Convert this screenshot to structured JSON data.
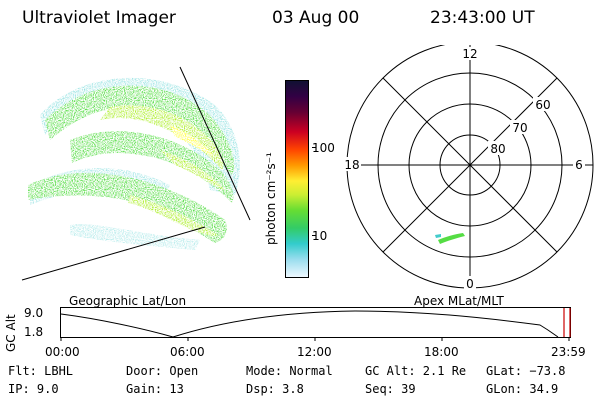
{
  "header": {
    "instrument": "Ultraviolet Imager",
    "date": "03 Aug 00",
    "time": "23:43:00 UT"
  },
  "colorbar": {
    "label": "photon cm⁻²s⁻¹",
    "ticks": [
      "100",
      "10"
    ]
  },
  "polar_plot": {
    "mlt_labels": [
      "12",
      "18",
      "6",
      "0"
    ],
    "lat_labels": [
      "60",
      "70",
      "80"
    ]
  },
  "timeline": {
    "left_label": "Geographic Lat/Lon",
    "right_label": "Apex MLat/MLT",
    "y_axis_label": "GC Alt",
    "y_ticks": [
      "9.0",
      "1.8"
    ],
    "x_ticks": [
      "00:00",
      "06:00",
      "12:00",
      "18:00",
      "23:59"
    ]
  },
  "status": {
    "flt": "Flt: LBHL",
    "ip": "IP:  9.0",
    "door": "Door: Open",
    "gain": "Gain: 13",
    "mode": "Mode: Normal",
    "dsp": "Dsp:     3.8",
    "gc_alt": "GC Alt: 2.1 Re",
    "seq": "Seq: 39",
    "glat": "GLat: −73.8",
    "glon": "GLon:  34.9"
  },
  "colors": {
    "aurora_low": "#55dd44",
    "aurora_mid": "#aaee22",
    "aurora_high": "#ffff33",
    "aurora_sparse": "#44cccc",
    "cursor": "#cc0000"
  }
}
